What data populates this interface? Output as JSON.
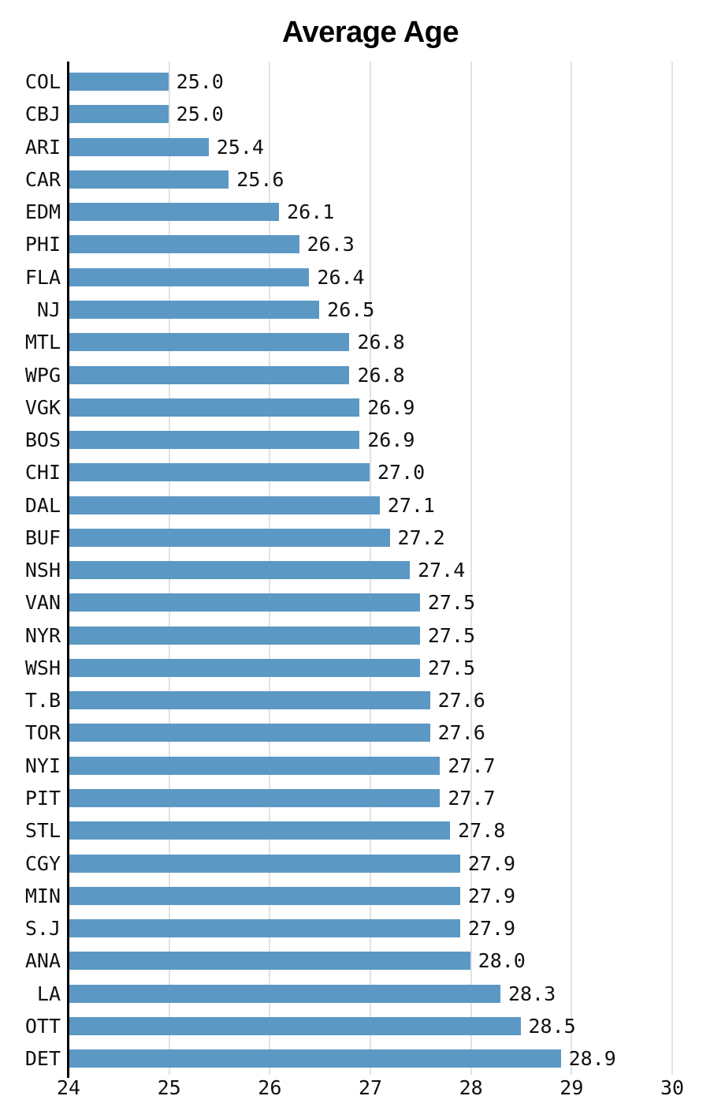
{
  "page": {
    "background_color": "#ffffff"
  },
  "chart_data": {
    "type": "bar",
    "orientation": "horizontal",
    "title": "Average Age",
    "xlabel": "",
    "ylabel": "",
    "grid": true,
    "xlim": [
      24,
      30
    ],
    "xticks": [
      "24",
      "25",
      "26",
      "27",
      "28",
      "29",
      "30"
    ],
    "bar_color": "#5C98C4",
    "gridline_color": "#e2e2e2",
    "axis_color": "#000000",
    "text_color": "#111111",
    "categories": [
      "COL",
      "CBJ",
      "ARI",
      "CAR",
      "EDM",
      "PHI",
      "FLA",
      "NJ",
      "MTL",
      "WPG",
      "VGK",
      "BOS",
      "CHI",
      "DAL",
      "BUF",
      "NSH",
      "VAN",
      "NYR",
      "WSH",
      "T.B",
      "TOR",
      "NYI",
      "PIT",
      "STL",
      "CGY",
      "MIN",
      "S.J",
      "ANA",
      "LA",
      "OTT",
      "DET"
    ],
    "values": [
      25.0,
      25.0,
      25.4,
      25.6,
      26.1,
      26.3,
      26.4,
      26.5,
      26.8,
      26.8,
      26.9,
      26.9,
      27.0,
      27.1,
      27.2,
      27.4,
      27.5,
      27.5,
      27.5,
      27.6,
      27.6,
      27.7,
      27.7,
      27.8,
      27.9,
      27.9,
      27.9,
      28.0,
      28.3,
      28.5,
      28.9
    ],
    "value_labels": [
      "25.0",
      "25.0",
      "25.4",
      "25.6",
      "26.1",
      "26.3",
      "26.4",
      "26.5",
      "26.8",
      "26.8",
      "26.9",
      "26.9",
      "27.0",
      "27.1",
      "27.2",
      "27.4",
      "27.5",
      "27.5",
      "27.5",
      "27.6",
      "27.6",
      "27.7",
      "27.7",
      "27.8",
      "27.9",
      "27.9",
      "27.9",
      "28.0",
      "28.3",
      "28.5",
      "28.9"
    ]
  }
}
